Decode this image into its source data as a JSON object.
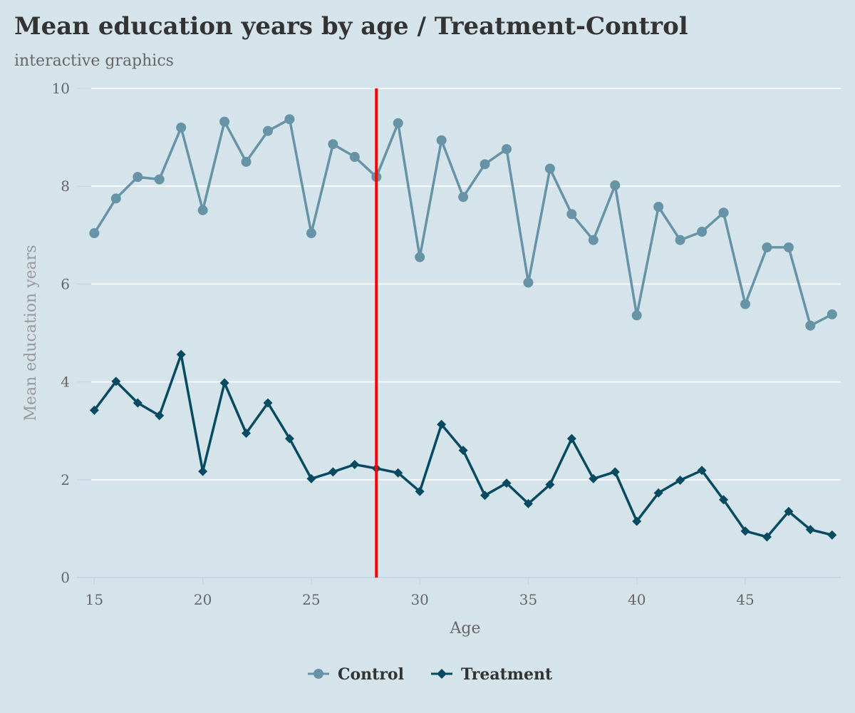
{
  "chart_data": {
    "type": "line",
    "title": "Mean education years by age / Treatment-Control",
    "subtitle": "interactive graphics",
    "xlabel": "Age",
    "ylabel": "Mean education years",
    "xlim": [
      14.2,
      49.4
    ],
    "ylim": [
      0,
      10
    ],
    "x_ticks": [
      15,
      20,
      25,
      30,
      35,
      40,
      45
    ],
    "y_ticks": [
      0,
      2,
      4,
      6,
      8,
      10
    ],
    "grid": "horizontal",
    "legend_position": "bottom-center",
    "reference_line": {
      "x": 28,
      "color": "#ff0000"
    },
    "x": [
      15,
      16,
      17,
      18,
      19,
      20,
      21,
      22,
      23,
      24,
      25,
      26,
      27,
      28,
      29,
      30,
      31,
      32,
      33,
      34,
      35,
      36,
      37,
      38,
      39,
      40,
      41,
      42,
      43,
      44,
      45,
      46,
      47,
      48,
      49
    ],
    "series": [
      {
        "name": "Control",
        "color": "#6793a7",
        "marker": "circle",
        "values": [
          7.04,
          7.75,
          8.19,
          8.14,
          9.2,
          7.51,
          9.32,
          8.5,
          9.13,
          9.37,
          7.04,
          8.86,
          8.6,
          8.19,
          9.29,
          6.55,
          8.94,
          7.78,
          8.45,
          8.76,
          6.03,
          8.36,
          7.43,
          6.9,
          8.02,
          5.36,
          7.58,
          6.9,
          7.07,
          7.46,
          5.59,
          6.75,
          6.75,
          5.15,
          5.38
        ]
      },
      {
        "name": "Treatment",
        "color": "#064a62",
        "marker": "diamond",
        "values": [
          3.42,
          4.01,
          3.57,
          3.31,
          4.56,
          2.17,
          3.98,
          2.95,
          3.57,
          2.84,
          2.02,
          2.16,
          2.31,
          2.23,
          2.14,
          1.76,
          3.13,
          2.6,
          1.68,
          1.93,
          1.51,
          1.9,
          2.84,
          2.02,
          2.16,
          1.15,
          1.73,
          1.99,
          2.19,
          1.59,
          0.95,
          0.83,
          1.35,
          0.98,
          0.87
        ]
      }
    ]
  }
}
